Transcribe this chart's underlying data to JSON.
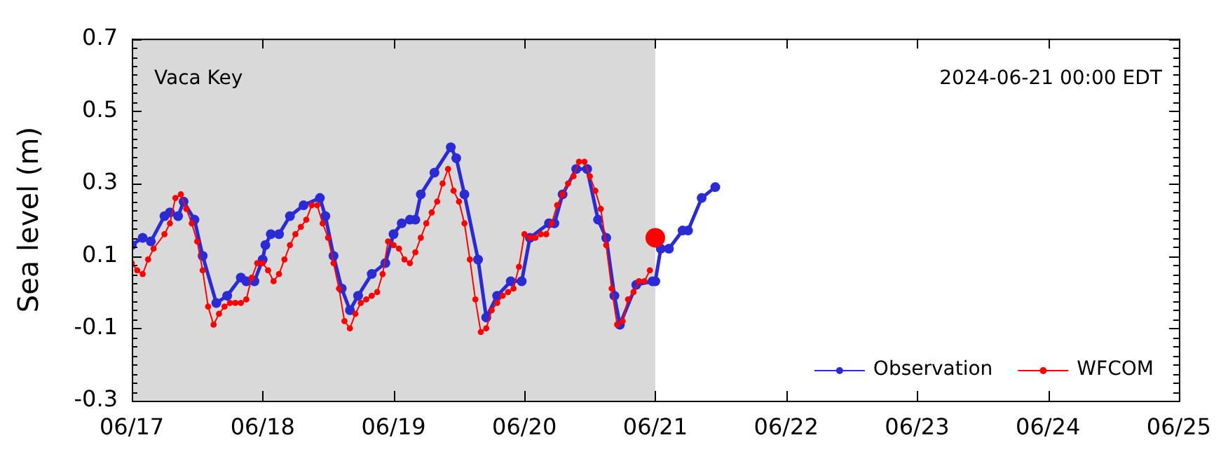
{
  "chart_data": {
    "type": "line",
    "ylabel": "Sea level (m)",
    "annotations": [
      "Vaca Key",
      "2024-06-21 00:00 EDT"
    ],
    "xlim": [
      "2024-06-17",
      "2024-06-25"
    ],
    "xticks": [
      {
        "value": "2024-06-17",
        "label": "06/17"
      },
      {
        "value": "2024-06-18",
        "label": "06/18"
      },
      {
        "value": "2024-06-19",
        "label": "06/19"
      },
      {
        "value": "2024-06-20",
        "label": "06/20"
      },
      {
        "value": "2024-06-21",
        "label": "06/21"
      },
      {
        "value": "2024-06-22",
        "label": "06/22"
      },
      {
        "value": "2024-06-23",
        "label": "06/23"
      },
      {
        "value": "2024-06-24",
        "label": "06/24"
      },
      {
        "value": "2024-06-25",
        "label": "06/25"
      }
    ],
    "ylim": [
      -0.3,
      0.7
    ],
    "yticks": [
      -0.3,
      -0.1,
      0.1,
      0.3,
      0.5,
      0.7
    ],
    "grid": false,
    "legend": "bottom right",
    "marker": "circle",
    "line_style": "solid",
    "bands": [
      {
        "axis": "x",
        "from": "2024-06-17",
        "to": "2024-06-21",
        "color": "#d9d9d9"
      }
    ],
    "series": [
      {
        "name": "Observation",
        "color": "#2b2bd6",
        "x": [
          "2024-06-17T00:00",
          "2024-06-17T02:00",
          "2024-06-17T03:30",
          "2024-06-17T06:00",
          "2024-06-17T07:00",
          "2024-06-17T08:30",
          "2024-06-17T09:30",
          "2024-06-17T11:30",
          "2024-06-17T13:00",
          "2024-06-17T15:30",
          "2024-06-17T17:30",
          "2024-06-17T20:00",
          "2024-06-17T21:00",
          "2024-06-17T22:30",
          "2024-06-18T00:00",
          "2024-06-18T00:30",
          "2024-06-18T01:30",
          "2024-06-18T03:00",
          "2024-06-18T05:00",
          "2024-06-18T07:30",
          "2024-06-18T10:30",
          "2024-06-18T11:30",
          "2024-06-18T13:00",
          "2024-06-18T14:30",
          "2024-06-18T16:00",
          "2024-06-18T17:30",
          "2024-06-18T20:00",
          "2024-06-18T22:30",
          "2024-06-19T00:00",
          "2024-06-19T01:30",
          "2024-06-19T03:00",
          "2024-06-19T04:00",
          "2024-06-19T05:00",
          "2024-06-19T07:30",
          "2024-06-19T10:30",
          "2024-06-19T11:30",
          "2024-06-19T13:00",
          "2024-06-19T15:30",
          "2024-06-19T17:00",
          "2024-06-19T19:00",
          "2024-06-19T21:30",
          "2024-06-19T23:30",
          "2024-06-20T01:00",
          "2024-06-20T04:30",
          "2024-06-20T05:30",
          "2024-06-20T07:00",
          "2024-06-20T09:30",
          "2024-06-20T11:30",
          "2024-06-20T13:30",
          "2024-06-20T15:00",
          "2024-06-20T16:30",
          "2024-06-20T17:30",
          "2024-06-20T20:30",
          "2024-06-20T23:30",
          "2024-06-21T00:00",
          "2024-06-21T01:00",
          "2024-06-21T02:30",
          "2024-06-21T05:00",
          "2024-06-21T06:00",
          "2024-06-21T08:30",
          "2024-06-21T11:00"
        ],
        "values": [
          0.13,
          0.15,
          0.14,
          0.21,
          0.22,
          0.21,
          0.25,
          0.2,
          0.1,
          -0.03,
          -0.01,
          0.04,
          0.03,
          0.03,
          0.09,
          0.13,
          0.16,
          0.16,
          0.21,
          0.24,
          0.26,
          0.21,
          0.1,
          0.01,
          -0.05,
          -0.01,
          0.05,
          0.08,
          0.16,
          0.19,
          0.2,
          0.2,
          0.27,
          0.33,
          0.4,
          0.37,
          0.27,
          0.09,
          -0.07,
          -0.01,
          0.03,
          0.03,
          0.15,
          0.19,
          0.19,
          0.27,
          0.34,
          0.34,
          0.2,
          0.15,
          -0.01,
          -0.09,
          0.02,
          0.03,
          0.03,
          0.12,
          0.12,
          0.17,
          0.17,
          0.26,
          0.29
        ]
      },
      {
        "name": "WFCOM",
        "color": "#ff0000",
        "x": [
          "2024-06-17T00:00",
          "2024-06-17T01:00",
          "2024-06-17T02:00",
          "2024-06-17T03:00",
          "2024-06-17T04:00",
          "2024-06-17T06:00",
          "2024-06-17T07:00",
          "2024-06-17T08:00",
          "2024-06-17T09:00",
          "2024-06-17T10:00",
          "2024-06-17T11:00",
          "2024-06-17T12:00",
          "2024-06-17T13:00",
          "2024-06-17T14:00",
          "2024-06-17T15:00",
          "2024-06-17T16:00",
          "2024-06-17T17:00",
          "2024-06-17T18:00",
          "2024-06-17T19:00",
          "2024-06-17T20:00",
          "2024-06-17T21:00",
          "2024-06-17T22:00",
          "2024-06-17T23:00",
          "2024-06-18T00:00",
          "2024-06-18T01:00",
          "2024-06-18T02:00",
          "2024-06-18T03:00",
          "2024-06-18T04:00",
          "2024-06-18T05:00",
          "2024-06-18T06:00",
          "2024-06-18T07:00",
          "2024-06-18T08:00",
          "2024-06-18T09:00",
          "2024-06-18T10:00",
          "2024-06-18T11:00",
          "2024-06-18T12:00",
          "2024-06-18T13:00",
          "2024-06-18T14:00",
          "2024-06-18T15:00",
          "2024-06-18T16:00",
          "2024-06-18T17:00",
          "2024-06-18T18:00",
          "2024-06-18T19:00",
          "2024-06-18T20:00",
          "2024-06-18T21:00",
          "2024-06-18T22:00",
          "2024-06-18T23:00",
          "2024-06-19T00:00",
          "2024-06-19T01:00",
          "2024-06-19T02:00",
          "2024-06-19T03:00",
          "2024-06-19T04:00",
          "2024-06-19T05:00",
          "2024-06-19T06:00",
          "2024-06-19T07:00",
          "2024-06-19T08:00",
          "2024-06-19T09:00",
          "2024-06-19T10:00",
          "2024-06-19T11:00",
          "2024-06-19T12:00",
          "2024-06-19T13:00",
          "2024-06-19T14:00",
          "2024-06-19T15:00",
          "2024-06-19T16:00",
          "2024-06-19T17:00",
          "2024-06-19T18:00",
          "2024-06-19T19:00",
          "2024-06-19T20:00",
          "2024-06-19T21:00",
          "2024-06-19T22:00",
          "2024-06-19T23:00",
          "2024-06-20T00:00",
          "2024-06-20T01:00",
          "2024-06-20T02:00",
          "2024-06-20T03:00",
          "2024-06-20T04:00",
          "2024-06-20T05:00",
          "2024-06-20T06:00",
          "2024-06-20T07:00",
          "2024-06-20T08:00",
          "2024-06-20T09:00",
          "2024-06-20T10:00",
          "2024-06-20T11:00",
          "2024-06-20T12:00",
          "2024-06-20T13:00",
          "2024-06-20T14:00",
          "2024-06-20T15:00",
          "2024-06-20T16:00",
          "2024-06-20T17:00",
          "2024-06-20T18:00",
          "2024-06-20T19:00",
          "2024-06-20T20:00",
          "2024-06-20T21:00",
          "2024-06-20T22:00",
          "2024-06-20T23:00"
        ],
        "values": [
          0.08,
          0.06,
          0.05,
          0.09,
          0.12,
          0.16,
          0.19,
          0.26,
          0.27,
          0.23,
          0.19,
          0.14,
          0.06,
          -0.04,
          -0.09,
          -0.06,
          -0.04,
          -0.03,
          -0.03,
          -0.03,
          -0.02,
          0.04,
          0.08,
          0.08,
          0.06,
          0.03,
          0.05,
          0.09,
          0.13,
          0.16,
          0.18,
          0.2,
          0.24,
          0.24,
          0.19,
          0.15,
          0.08,
          0.01,
          -0.08,
          -0.1,
          -0.06,
          -0.03,
          -0.02,
          -0.01,
          0.0,
          0.05,
          0.14,
          0.13,
          0.12,
          0.09,
          0.08,
          0.11,
          0.15,
          0.19,
          0.22,
          0.25,
          0.3,
          0.34,
          0.28,
          0.25,
          0.19,
          0.09,
          -0.02,
          -0.11,
          -0.1,
          -0.05,
          -0.03,
          -0.01,
          0.0,
          0.01,
          0.07,
          0.16,
          0.15,
          0.15,
          0.16,
          0.16,
          0.19,
          0.24,
          0.27,
          0.3,
          0.32,
          0.36,
          0.36,
          0.32,
          0.28,
          0.23,
          0.13,
          0.01,
          -0.09,
          -0.08,
          -0.02,
          0.0,
          0.03,
          0.03,
          0.06
        ]
      },
      {
        "type": "scatter",
        "color": "#ff0000",
        "x": [
          "2024-06-21T00:00"
        ],
        "values": [
          0.15
        ]
      }
    ]
  }
}
